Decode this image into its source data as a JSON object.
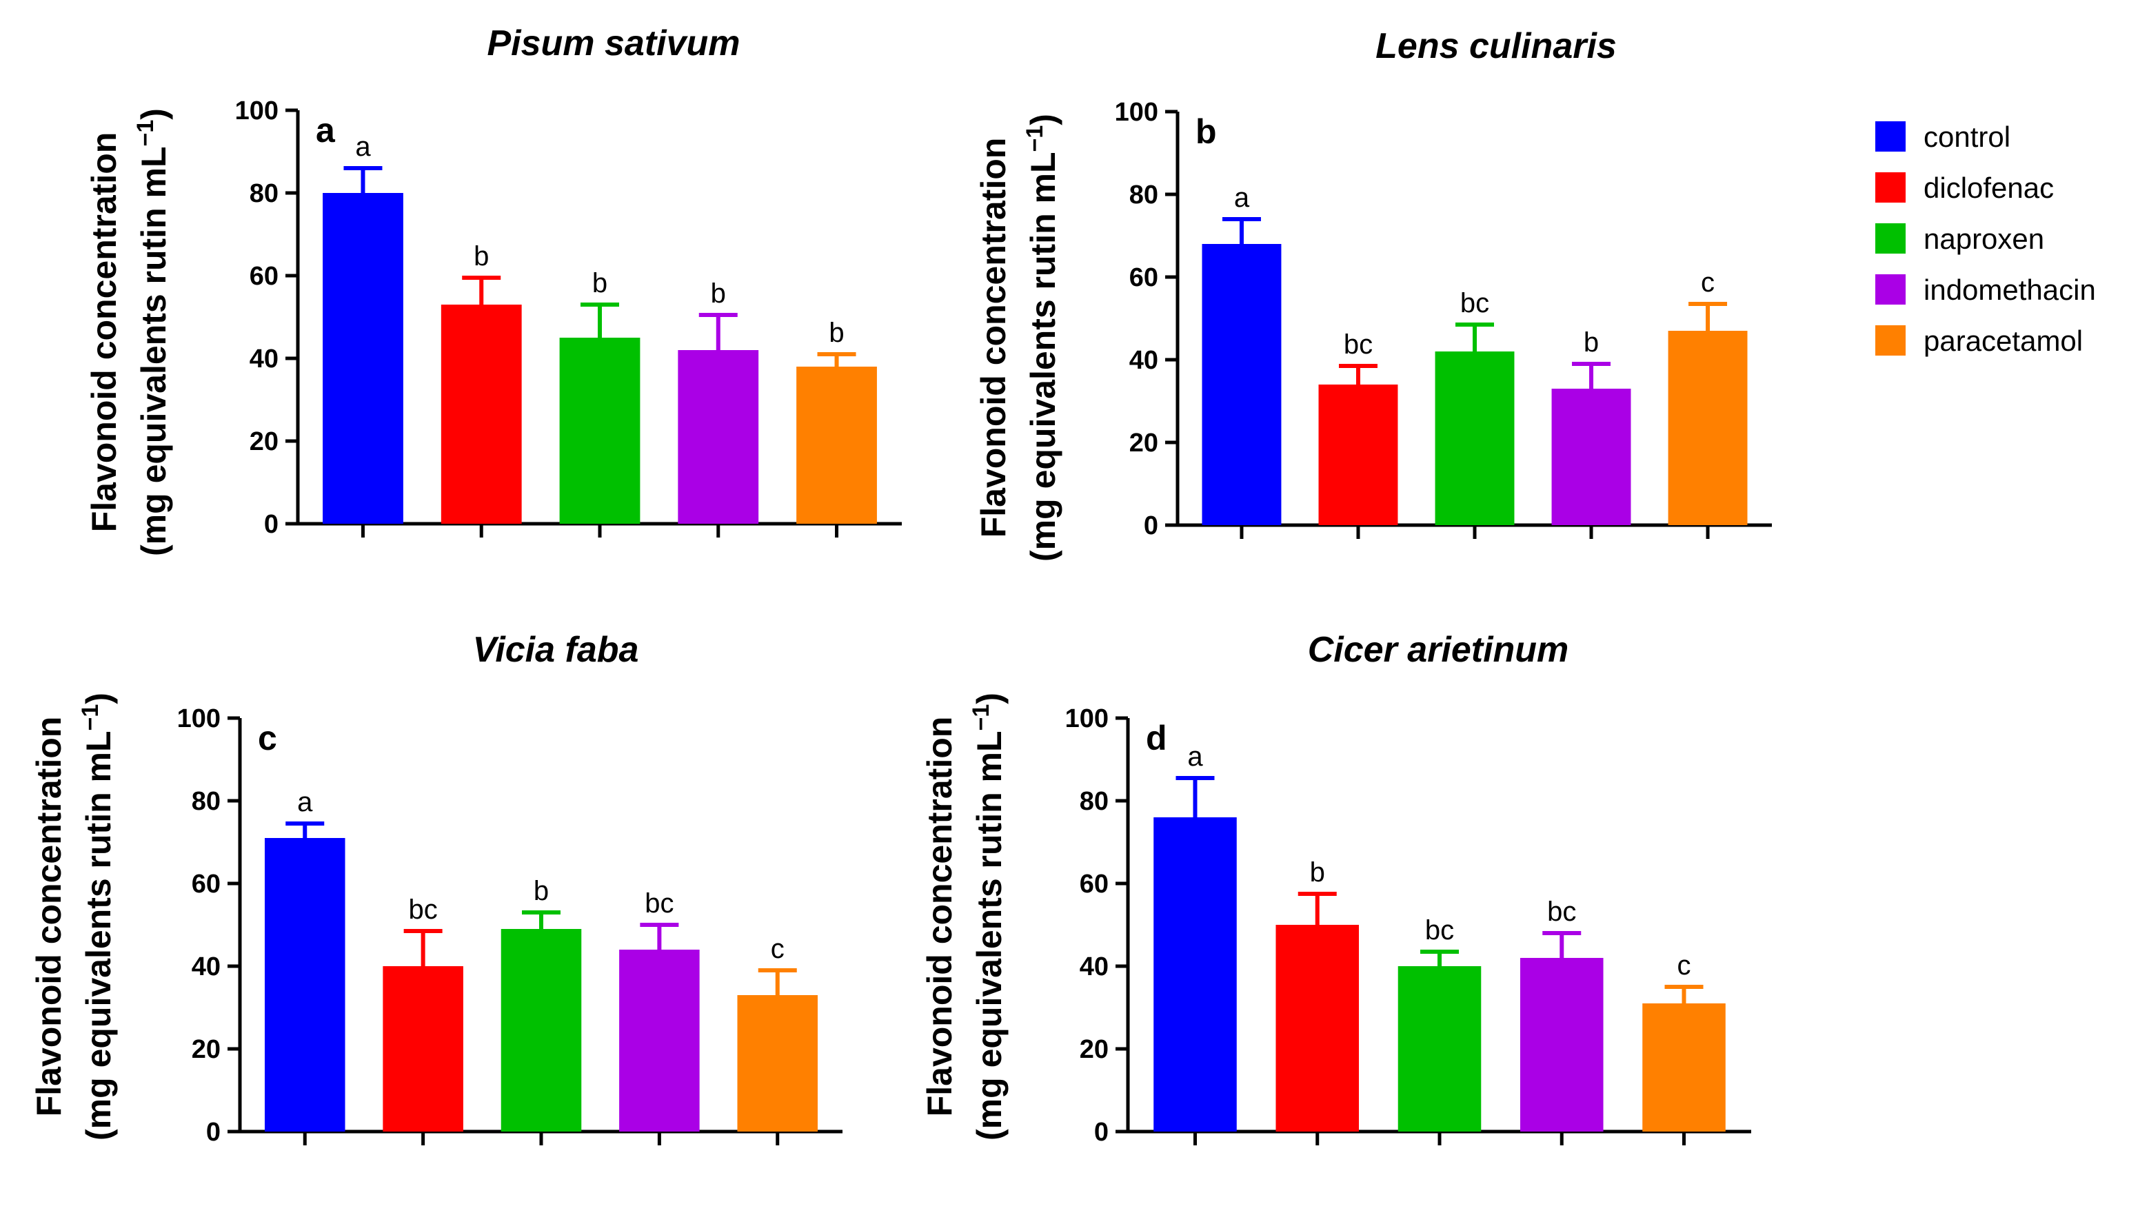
{
  "colors": {
    "control": "#0000ff",
    "diclofenac": "#ff0000",
    "naproxen": "#00c000",
    "indomethacin": "#aa00e6",
    "paracetamol": "#ff8000"
  },
  "legend": {
    "items": [
      "control",
      "diclofenac",
      "naproxen",
      "indomethacin",
      "paracetamol"
    ]
  },
  "chart_data": [
    {
      "type": "bar",
      "panel": "a",
      "title": "Pisum sativum",
      "ylabel_line1": "Flavonoid concentration",
      "ylabel_line2": "(mg equivalents rutin mL",
      "ylabel_sup": "−1",
      "ylabel_close": ")",
      "categories": [
        "control",
        "diclofenac",
        "naproxen",
        "indomethacin",
        "paracetamol"
      ],
      "values": [
        80,
        53,
        45,
        42,
        38
      ],
      "errors": [
        6,
        6.5,
        8,
        8.5,
        3
      ],
      "significance": [
        "a",
        "b",
        "b",
        "b",
        "b"
      ],
      "ylim": [
        0,
        100
      ],
      "yticks": [
        0,
        20,
        40,
        60,
        80,
        100
      ]
    },
    {
      "type": "bar",
      "panel": "b",
      "title": "Lens culinaris",
      "ylabel_line1": "Flavonoid concentration",
      "ylabel_line2": "(mg equivalents rutin mL",
      "ylabel_sup": "−1",
      "ylabel_close": ")",
      "categories": [
        "control",
        "diclofenac",
        "naproxen",
        "indomethacin",
        "paracetamol"
      ],
      "values": [
        68,
        34,
        42,
        33,
        47
      ],
      "errors": [
        6,
        4.5,
        6.5,
        6,
        6.5
      ],
      "significance": [
        "a",
        "bc",
        "bc",
        "b",
        "c"
      ],
      "ylim": [
        0,
        100
      ],
      "yticks": [
        0,
        20,
        40,
        60,
        80,
        100
      ]
    },
    {
      "type": "bar",
      "panel": "c",
      "title": "Vicia faba",
      "ylabel_line1": "Flavonoid concentration",
      "ylabel_line2": "(mg equivalents rutin mL",
      "ylabel_sup": "−1",
      "ylabel_close": ")",
      "categories": [
        "control",
        "diclofenac",
        "naproxen",
        "indomethacin",
        "paracetamol"
      ],
      "values": [
        71,
        40,
        49,
        44,
        33
      ],
      "errors": [
        3.5,
        8.5,
        4,
        6,
        6
      ],
      "significance": [
        "a",
        "bc",
        "b",
        "bc",
        "c"
      ],
      "ylim": [
        0,
        100
      ],
      "yticks": [
        0,
        20,
        40,
        60,
        80,
        100
      ]
    },
    {
      "type": "bar",
      "panel": "d",
      "title": "Cicer arietinum",
      "ylabel_line1": "Flavonoid concentration",
      "ylabel_line2": "(mg equivalents rutin mL",
      "ylabel_sup": "−1",
      "ylabel_close": ")",
      "categories": [
        "control",
        "diclofenac",
        "naproxen",
        "indomethacin",
        "paracetamol"
      ],
      "values": [
        76,
        50,
        40,
        42,
        31
      ],
      "errors": [
        9.5,
        7.5,
        3.5,
        6,
        4
      ],
      "significance": [
        "a",
        "b",
        "bc",
        "bc",
        "c"
      ],
      "ylim": [
        0,
        100
      ],
      "yticks": [
        0,
        20,
        40,
        60,
        80,
        100
      ]
    }
  ]
}
